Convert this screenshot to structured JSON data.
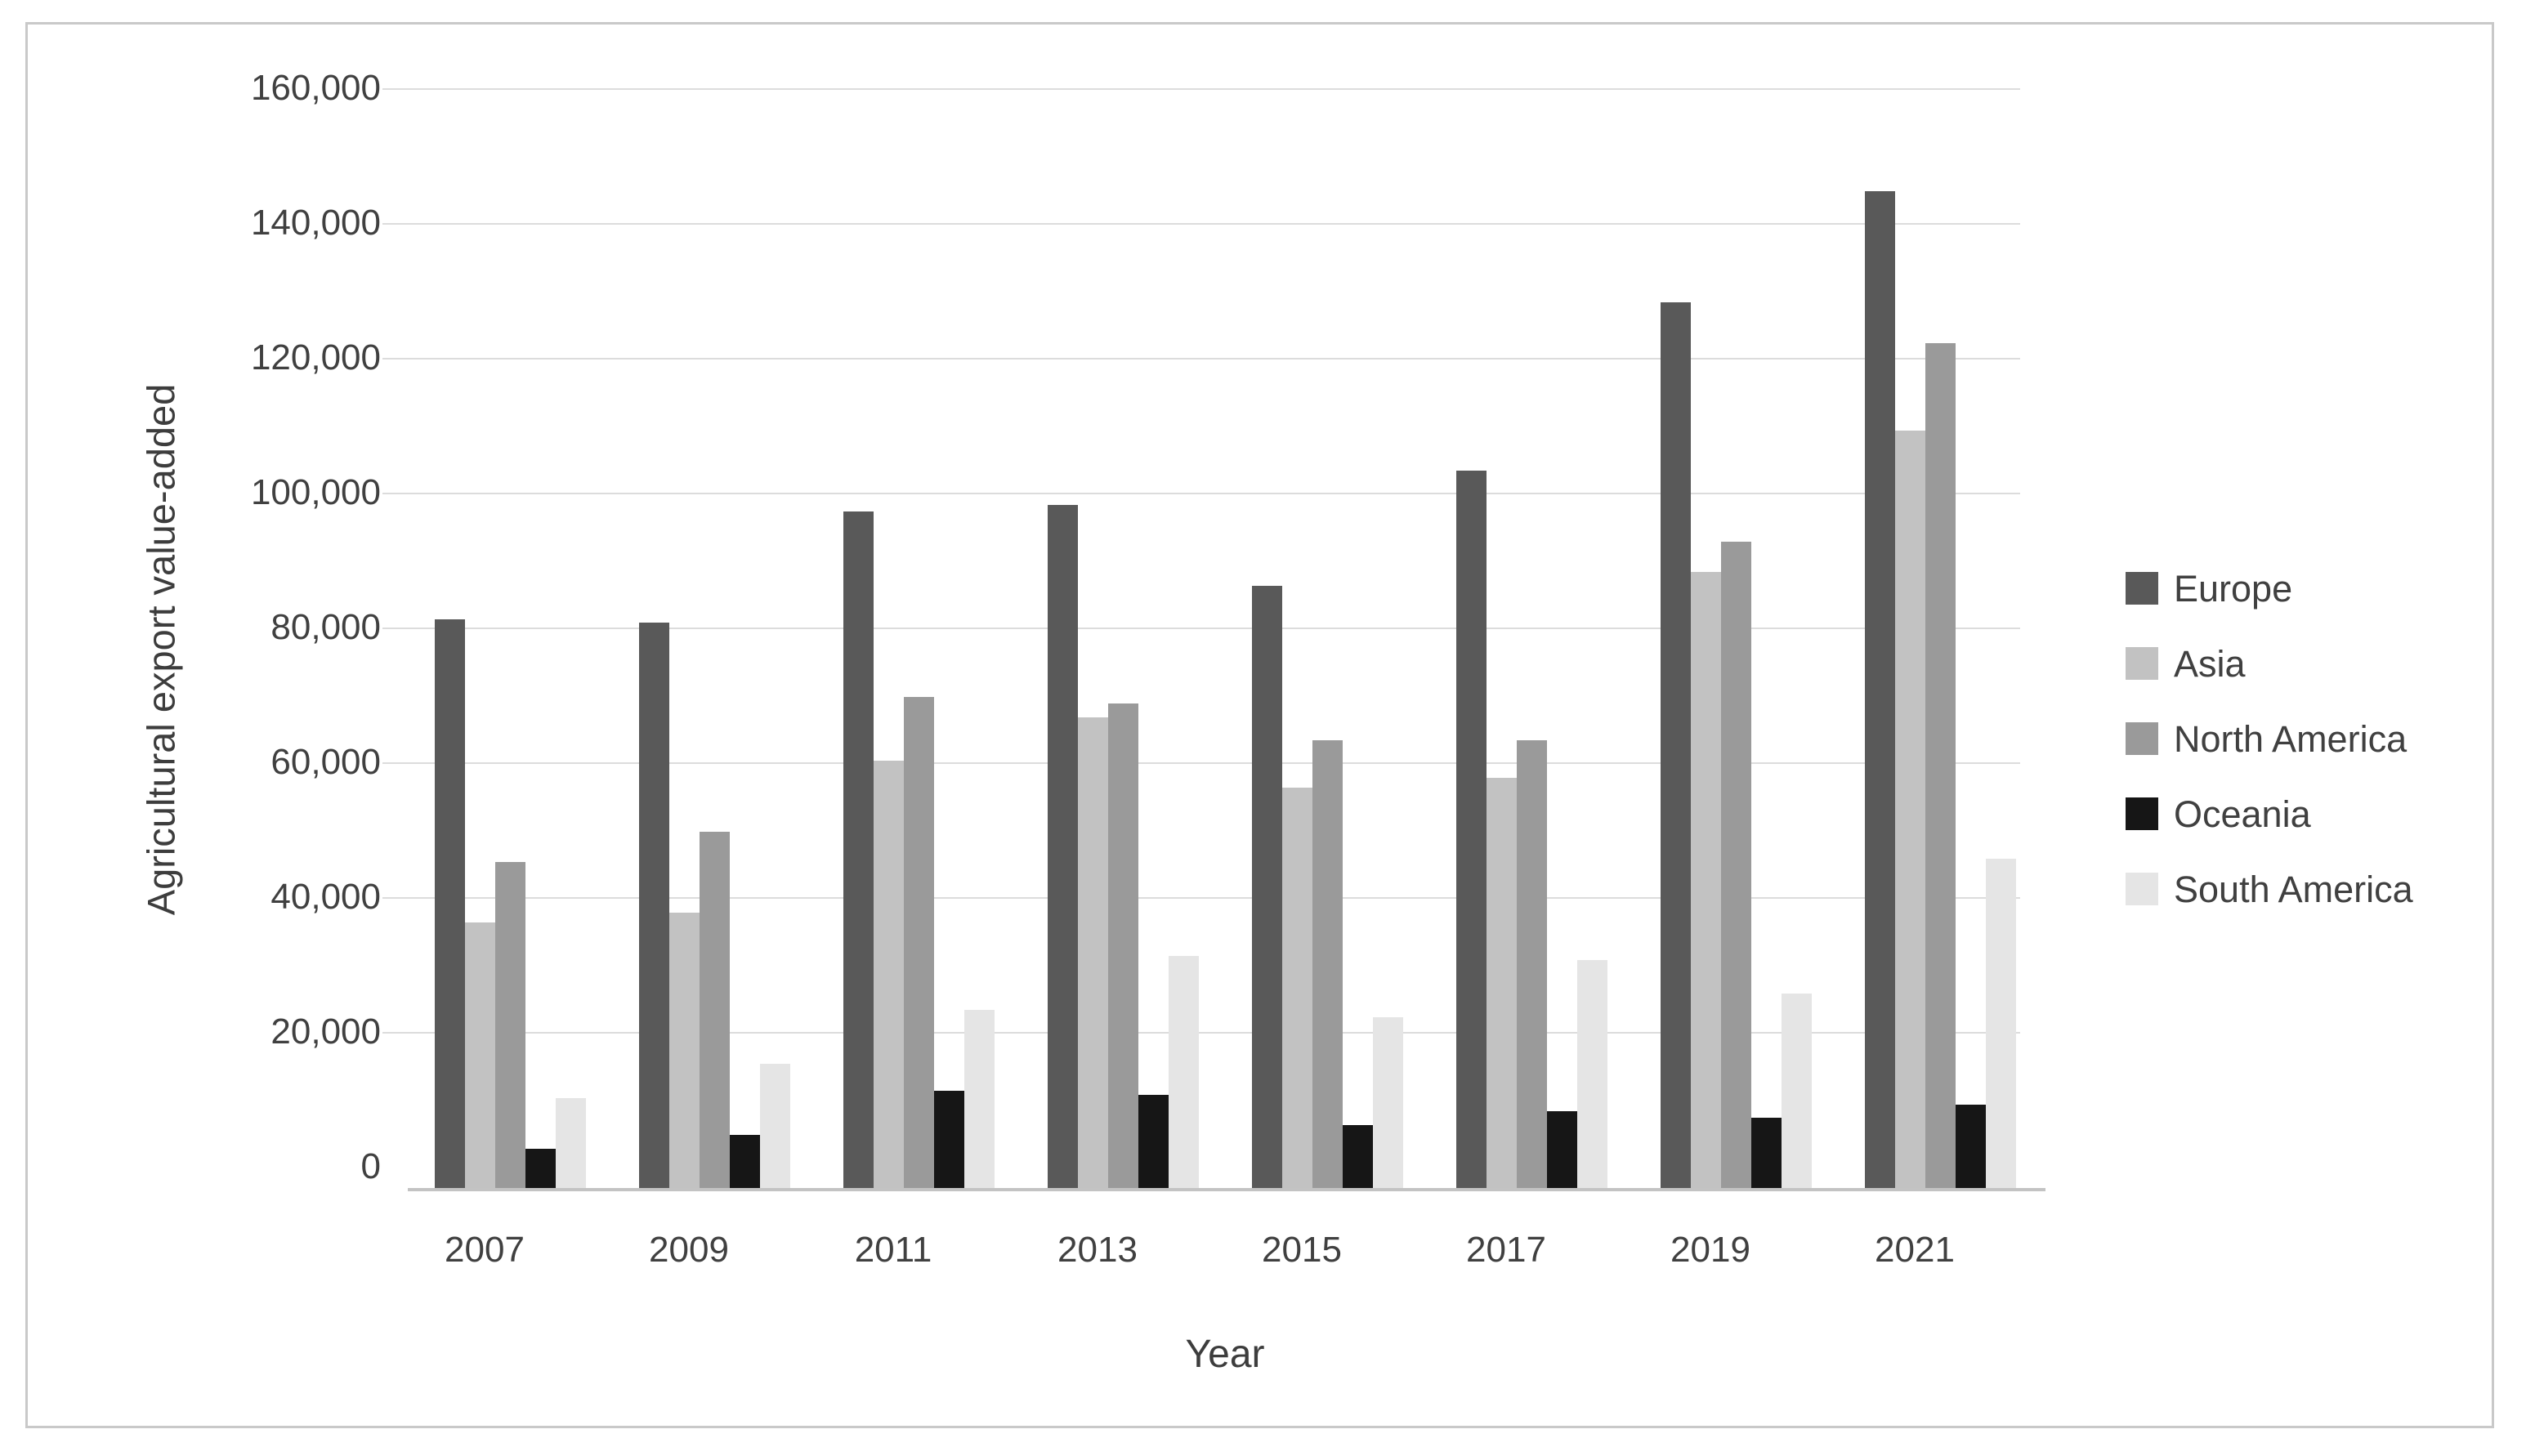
{
  "chart_data": {
    "type": "bar",
    "title": "",
    "xlabel": "Year",
    "ylabel": "Agricultural export value-added",
    "categories": [
      "2007",
      "2009",
      "2011",
      "2013",
      "2015",
      "2017",
      "2019",
      "2021"
    ],
    "series": [
      {
        "name": "Europe",
        "color": "#595959",
        "values": [
          84500,
          84000,
          100500,
          101500,
          89500,
          106500,
          131500,
          148000
        ]
      },
      {
        "name": "Asia",
        "color": "#c2c2c2",
        "values": [
          39500,
          41000,
          63500,
          70000,
          59500,
          61000,
          91500,
          112500
        ]
      },
      {
        "name": "North America",
        "color": "#9a9a9a",
        "values": [
          48500,
          53000,
          73000,
          72000,
          66500,
          66500,
          96000,
          125500
        ]
      },
      {
        "name": "Oceania",
        "color": "#161616",
        "values": [
          6000,
          8000,
          14500,
          14000,
          9500,
          11500,
          10500,
          12500
        ]
      },
      {
        "name": "South America",
        "color": "#e5e5e5",
        "values": [
          13500,
          18500,
          26500,
          34500,
          25500,
          34000,
          29000,
          49000
        ]
      }
    ],
    "ylim": [
      0,
      160000
    ],
    "y_tick_step": 20000,
    "y_tick_labels": [
      "0",
      "20,000",
      "40,000",
      "60,000",
      "80,000",
      "100,000",
      "120,000",
      "140,000",
      "160,000"
    ],
    "grid": "horizontal",
    "legend_position": "right"
  },
  "colors": {
    "gridline": "#dcdcdc",
    "axis_line": "#c3c3c3",
    "text": "#404040",
    "frame_border": "#c9c9c9",
    "background": "#ffffff"
  }
}
